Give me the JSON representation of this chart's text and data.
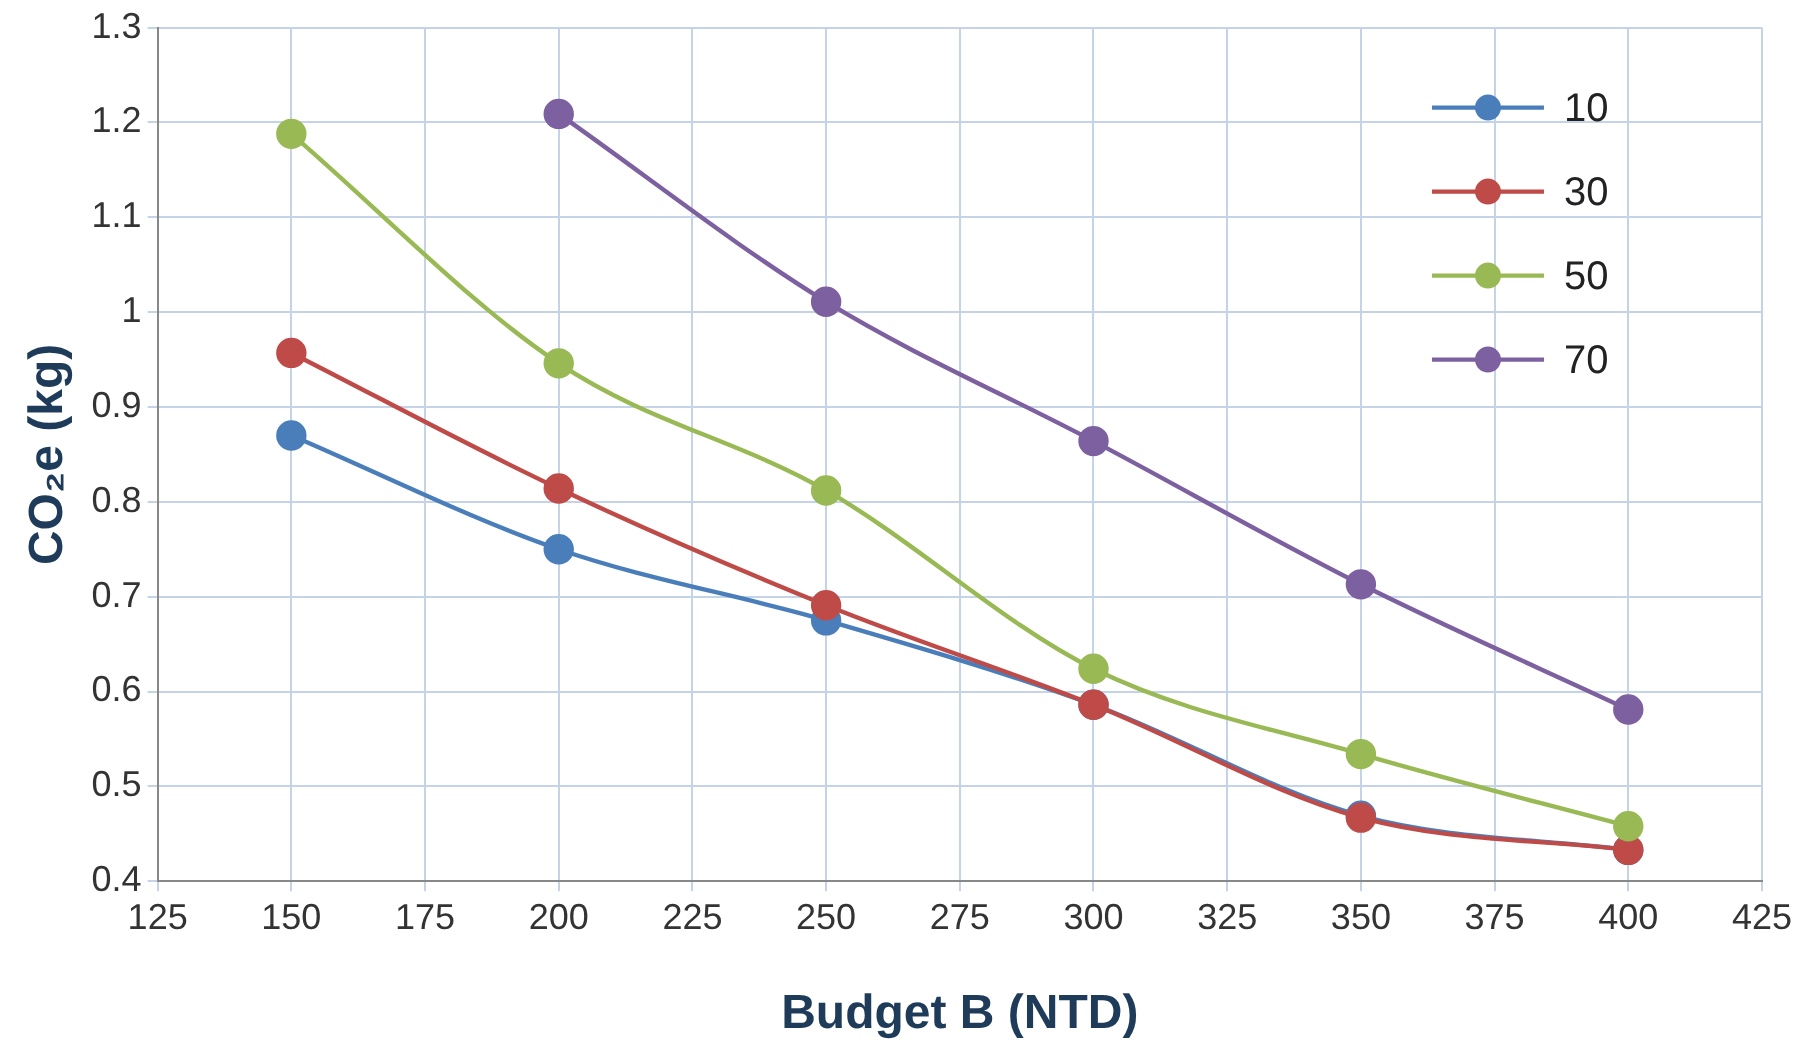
{
  "chart_data": {
    "type": "line",
    "xlabel": "Budget B (NTD)",
    "ylabel": "CO₂e (kg)",
    "xlim": [
      125,
      425
    ],
    "xticks": [
      125,
      150,
      175,
      200,
      225,
      250,
      275,
      300,
      325,
      350,
      375,
      400,
      425
    ],
    "ylim": [
      0.4,
      1.3
    ],
    "yticks": [
      0.4,
      0.5,
      0.6,
      0.7,
      0.8,
      0.9,
      1,
      1.1,
      1.2,
      1.3
    ],
    "grid": true,
    "legend": "top right",
    "marker": "circle",
    "line_style": "solid",
    "series": [
      {
        "name": "10",
        "color": "#4a7ebb",
        "x": [
          150,
          200,
          250,
          300,
          350,
          400
        ],
        "values": [
          0.87,
          0.75,
          0.675,
          0.586,
          0.469,
          0.433
        ]
      },
      {
        "name": "30",
        "color": "#be4b48",
        "x": [
          150,
          200,
          250,
          300,
          350,
          400
        ],
        "values": [
          0.957,
          0.814,
          0.691,
          0.586,
          0.467,
          0.433
        ]
      },
      {
        "name": "50",
        "color": "#98b954",
        "x": [
          150,
          200,
          250,
          300,
          350,
          400
        ],
        "values": [
          1.188,
          0.946,
          0.812,
          0.624,
          0.534,
          0.458
        ]
      },
      {
        "name": "70",
        "color": "#7d60a0",
        "x": [
          200,
          250,
          300,
          350,
          400
        ],
        "values": [
          1.209,
          1.011,
          0.864,
          0.713,
          0.581
        ]
      }
    ]
  }
}
